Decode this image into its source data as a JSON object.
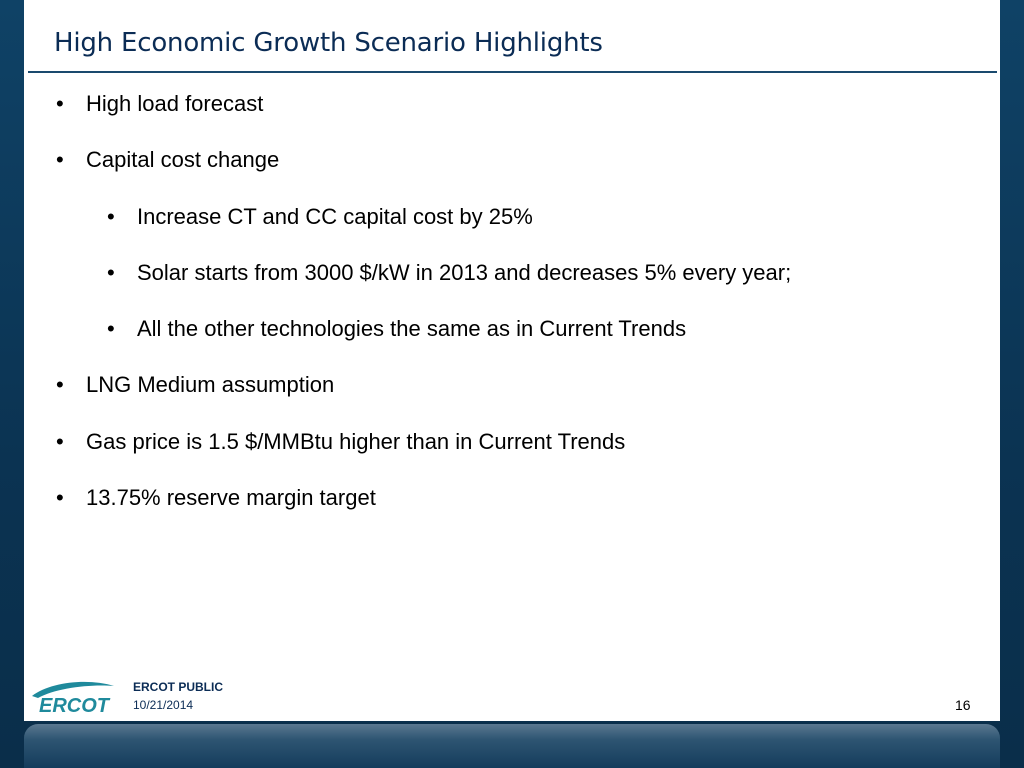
{
  "slide": {
    "title": "High Economic Growth Scenario Highlights",
    "bullets": [
      {
        "level": 1,
        "text": "High load forecast"
      },
      {
        "level": 1,
        "text": "Capital cost change"
      },
      {
        "level": 2,
        "text": "Increase CT and CC capital cost by 25%"
      },
      {
        "level": 2,
        "text": "Solar starts from 3000 $/kW in 2013 and decreases 5% every year;"
      },
      {
        "level": 2,
        "text": "All the other technologies the same as in Current Trends"
      },
      {
        "level": 1,
        "text": "LNG Medium assumption"
      },
      {
        "level": 1,
        "text": "Gas price is 1.5 $/MMBtu higher than in Current Trends"
      },
      {
        "level": 1,
        "text": "13.75% reserve margin target"
      }
    ],
    "bullet_char": "•"
  },
  "footer": {
    "logo_text": "ERCOT",
    "label": "ERCOT PUBLIC",
    "date": "10/21/2014",
    "page_number": "16"
  },
  "colors": {
    "title": "#0b2c55",
    "frame": "#0d3a5c",
    "logo_teal": "#1f8a9c"
  },
  "icons": {
    "logo": "ercot-logo-icon"
  }
}
